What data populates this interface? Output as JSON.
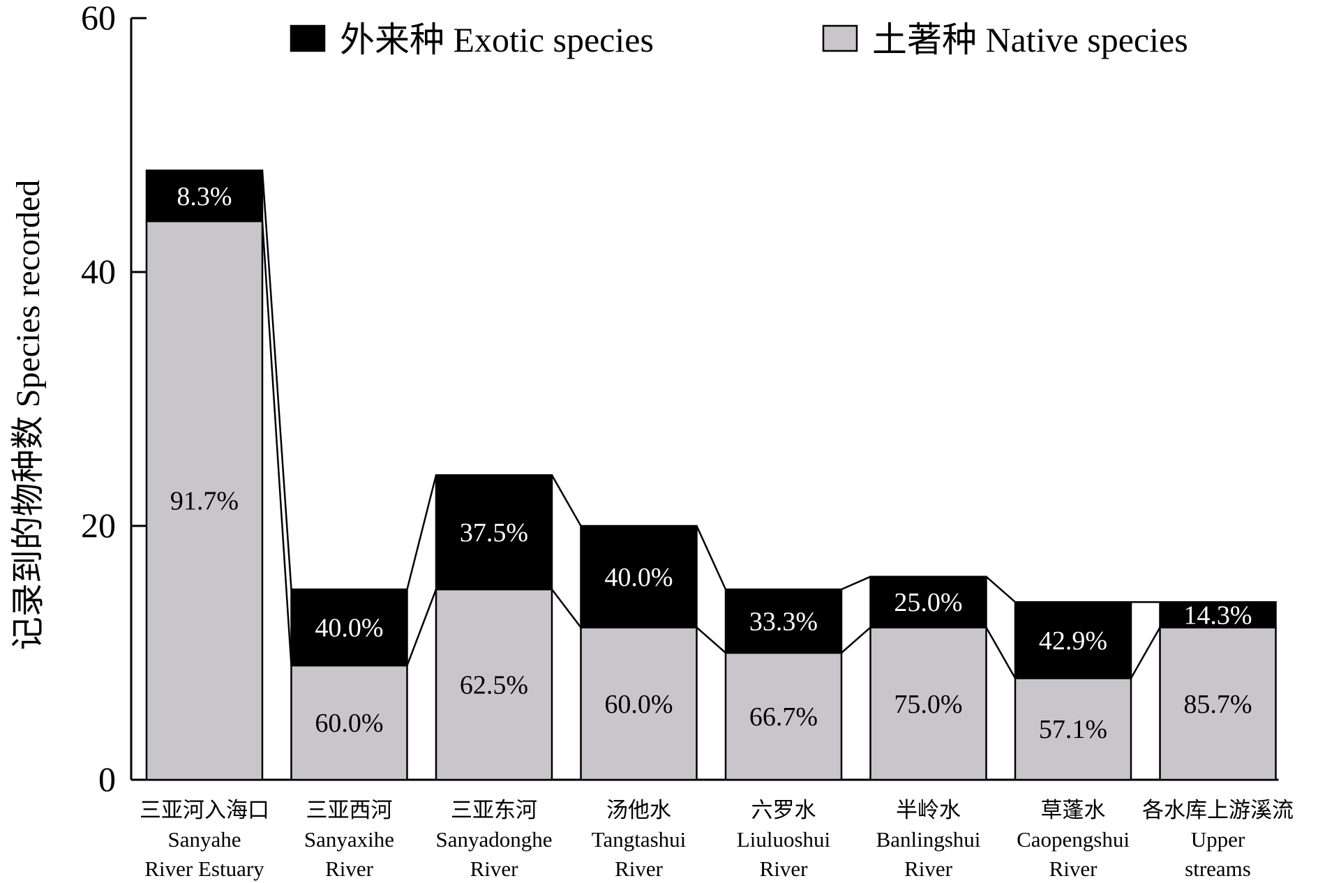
{
  "chart_data": {
    "type": "bar",
    "stacked": true,
    "categories": [
      [
        "三亚河入海口",
        "Sanyahe",
        "River Estuary"
      ],
      [
        "三亚西河",
        "Sanyaxihe",
        "River"
      ],
      [
        "三亚东河",
        "Sanyadonghe",
        "River"
      ],
      [
        "汤他水",
        "Tangtashui",
        "River"
      ],
      [
        "六罗水",
        "Liuluoshui",
        "River"
      ],
      [
        "半岭水",
        "Banlingshui",
        "River"
      ],
      [
        "草蓬水",
        "Caopengshui",
        "River"
      ],
      [
        "各水库上游溪流",
        "Upper",
        "streams"
      ]
    ],
    "series": [
      {
        "name": "土著种 Native species",
        "color": "#c9c6cb",
        "values": [
          44,
          9,
          15,
          12,
          10,
          12,
          8,
          12
        ],
        "labels": [
          "91.7%",
          "60.0%",
          "62.5%",
          "60.0%",
          "66.7%",
          "75.0%",
          "57.1%",
          "85.7%"
        ]
      },
      {
        "name": "外来种 Exotic species",
        "color": "#000000",
        "values": [
          4,
          6,
          9,
          8,
          5,
          4,
          6,
          2
        ],
        "labels": [
          "8.3%",
          "40.0%",
          "37.5%",
          "40.0%",
          "33.3%",
          "25.0%",
          "42.9%",
          "14.3%"
        ]
      }
    ],
    "xlabel": "",
    "ylabel": "记录到的物种数 Species recorded",
    "ylim": [
      0,
      60
    ],
    "yticks": [
      0,
      20,
      40,
      60
    ],
    "legend_position": "top-right",
    "connector_lines": true,
    "grid": false
  }
}
